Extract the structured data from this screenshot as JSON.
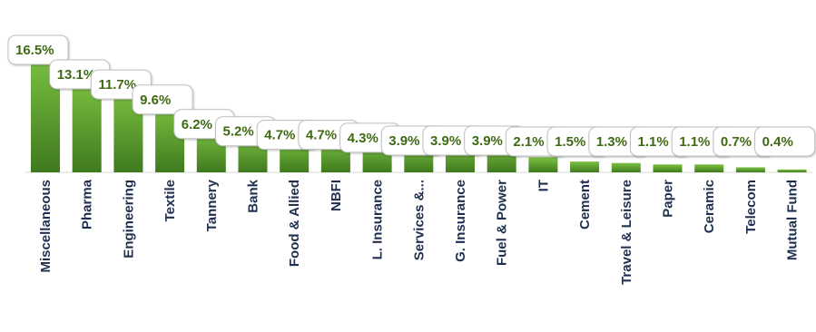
{
  "chart_data": {
    "type": "bar",
    "title": "",
    "xlabel": "",
    "ylabel": "",
    "ylim": [
      0,
      16.5
    ],
    "grid": false,
    "legend": "none",
    "colors": {
      "bar_top": "#7cc242",
      "bar_bottom": "#3f7a1e",
      "label_text": "#3f6a14",
      "axis_text": "#1f2f4f"
    },
    "categories": [
      "Miscellaneous",
      "Pharma",
      "Engineering",
      "Textile",
      "Tannery",
      "Bank",
      "Food & Allied",
      "NBFI",
      "L. Insurance",
      "Services &...",
      "G. Insurance",
      "Fuel & Power",
      "IT",
      "Cement",
      "Travel & Leisure",
      "Paper",
      "Ceramic",
      "Telecom",
      "Mutual Fund"
    ],
    "values": [
      16.5,
      13.1,
      11.7,
      9.6,
      6.2,
      5.2,
      4.7,
      4.7,
      4.3,
      3.9,
      3.9,
      3.9,
      2.1,
      1.5,
      1.3,
      1.1,
      1.1,
      0.7,
      0.4
    ],
    "data_labels": [
      "16.5%",
      "13.1%",
      "11.7%",
      "9.6%",
      "6.2%",
      "5.2%",
      "4.7%",
      "4.7%",
      "4.3%",
      "3.9%",
      "3.9%",
      "3.9%",
      "2.1%",
      "1.5%",
      "1.3%",
      "1.1%",
      "1.1%",
      "0.7%",
      "0.4%"
    ]
  }
}
